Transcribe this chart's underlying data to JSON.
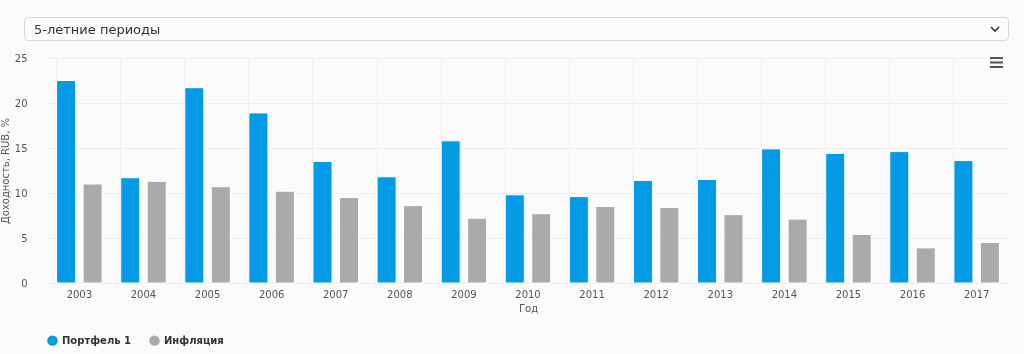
{
  "chart_data": {
    "type": "bar",
    "subtitle": "5-летние периоды",
    "xlabel": "Год",
    "ylabel": "Доходность, RUB, %",
    "categories": [
      "2003",
      "2004",
      "2005",
      "2006",
      "2007",
      "2008",
      "2009",
      "2010",
      "2011",
      "2012",
      "2013",
      "2014",
      "2015",
      "2016",
      "2017"
    ],
    "series": [
      {
        "name": "Портфель 1",
        "color": "#039be5",
        "values": [
          22.5,
          11.7,
          21.7,
          18.9,
          13.5,
          11.8,
          15.8,
          9.8,
          9.6,
          11.4,
          11.5,
          14.9,
          14.4,
          14.6,
          13.6
        ]
      },
      {
        "name": "Инфляция",
        "color": "#aaaaaa",
        "values": [
          11.0,
          11.3,
          10.7,
          10.2,
          9.5,
          8.6,
          7.2,
          7.7,
          8.5,
          8.4,
          7.6,
          7.1,
          5.4,
          3.9,
          4.5
        ]
      }
    ],
    "ylim": [
      0,
      25
    ],
    "yticks": [
      0,
      5,
      10,
      15,
      20,
      25
    ],
    "grid": true,
    "legend": "bottom"
  }
}
